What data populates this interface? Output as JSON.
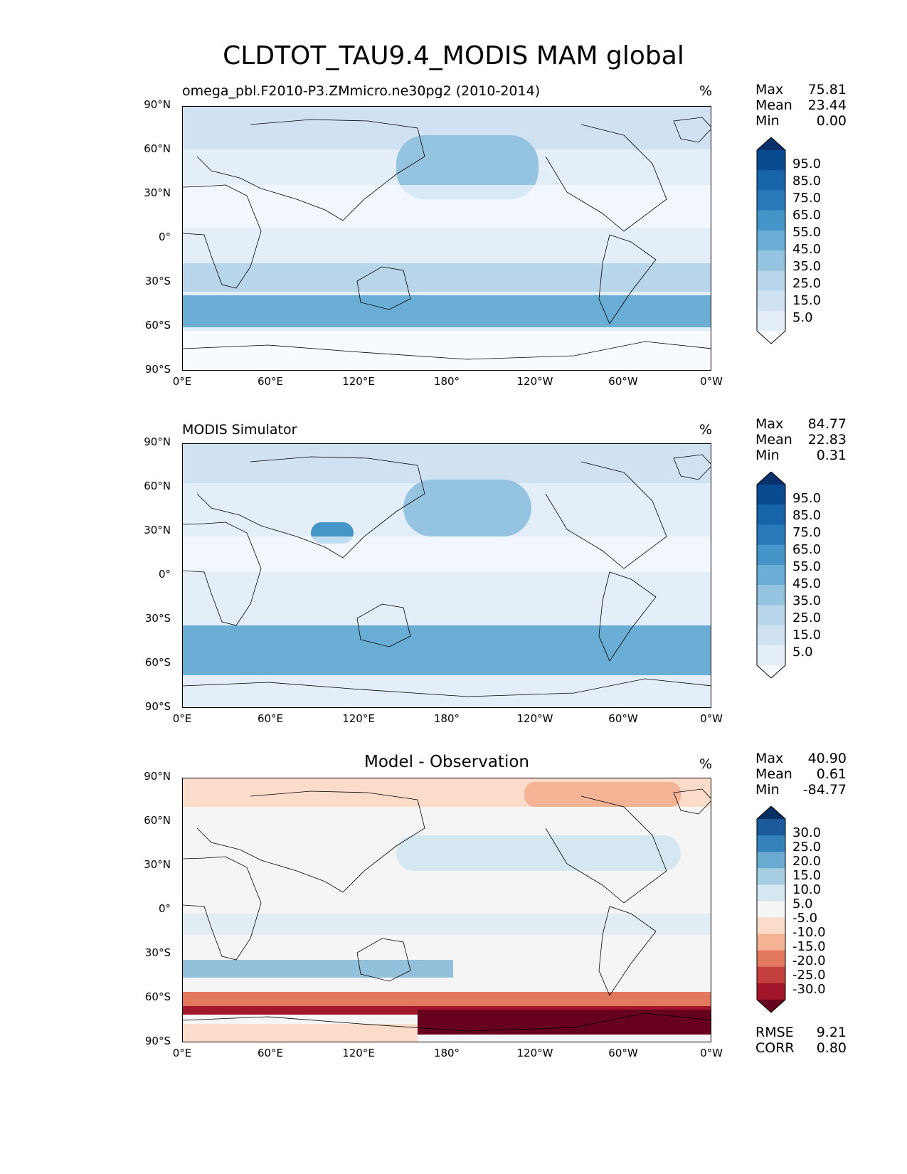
{
  "figure_title": "CLDTOT_TAU9.4_MODIS MAM global",
  "chart_data": [
    {
      "type": "heatmap",
      "title": "omega_pbl.F2010-P3.ZMmicro.ne30pg2 (2010-2014)",
      "units": "%",
      "stats": {
        "max_label": "Max",
        "max": "75.81",
        "mean_label": "Mean",
        "mean": "23.44",
        "min_label": "Min",
        "min": "0.00"
      },
      "colorbar_levels": [
        "95.0",
        "85.0",
        "75.0",
        "65.0",
        "55.0",
        "45.0",
        "35.0",
        "25.0",
        "15.0",
        "5.0"
      ],
      "colorbar_colors": [
        "#08306b",
        "#0a4a90",
        "#1764ab",
        "#2a7abb",
        "#4695c8",
        "#6aaed6",
        "#94c4df",
        "#b8d5ea",
        "#d0e1f2",
        "#e3eef9",
        "#f7fbff"
      ],
      "xlim": [
        0,
        360
      ],
      "ylim": [
        -90,
        90
      ]
    },
    {
      "type": "heatmap",
      "title": "MODIS Simulator",
      "units": "%",
      "stats": {
        "max_label": "Max",
        "max": "84.77",
        "mean_label": "Mean",
        "mean": "22.83",
        "min_label": "Min",
        "min": "0.31"
      },
      "colorbar_levels": [
        "95.0",
        "85.0",
        "75.0",
        "65.0",
        "55.0",
        "45.0",
        "35.0",
        "25.0",
        "15.0",
        "5.0"
      ],
      "colorbar_colors": [
        "#08306b",
        "#0a4a90",
        "#1764ab",
        "#2a7abb",
        "#4695c8",
        "#6aaed6",
        "#94c4df",
        "#b8d5ea",
        "#d0e1f2",
        "#e3eef9",
        "#f7fbff"
      ],
      "xlim": [
        0,
        360
      ],
      "ylim": [
        -90,
        90
      ]
    },
    {
      "type": "heatmap",
      "title": "Model - Observation",
      "units": "%",
      "stats": {
        "max_label": "Max",
        "max": "40.90",
        "mean_label": "Mean",
        "mean": "0.61",
        "min_label": "Min",
        "min": "-84.77"
      },
      "colorbar_levels": [
        "30.0",
        "25.0",
        "20.0",
        "15.0",
        "10.0",
        "5.0",
        "-5.0",
        "-10.0",
        "-15.0",
        "-20.0",
        "-25.0",
        "-30.0"
      ],
      "colorbar_colors": [
        "#053061",
        "#1b5a9b",
        "#3682bb",
        "#6aa9d0",
        "#a6cee3",
        "#d5e7f1",
        "#f5f5f5",
        "#fbdccb",
        "#f5b396",
        "#e2795f",
        "#c3403f",
        "#a1162a",
        "#67001f"
      ],
      "bottom_stats": {
        "rmse_label": "RMSE",
        "rmse": "9.21",
        "corr_label": "CORR",
        "corr": "0.80"
      },
      "xlim": [
        0,
        360
      ],
      "ylim": [
        -90,
        90
      ]
    }
  ],
  "x_ticks": [
    "0°E",
    "60°E",
    "120°E",
    "180°",
    "120°W",
    "60°W",
    "0°W"
  ],
  "y_ticks": [
    "90°N",
    "60°N",
    "30°N",
    "0°",
    "30°S",
    "60°S",
    "90°S"
  ]
}
